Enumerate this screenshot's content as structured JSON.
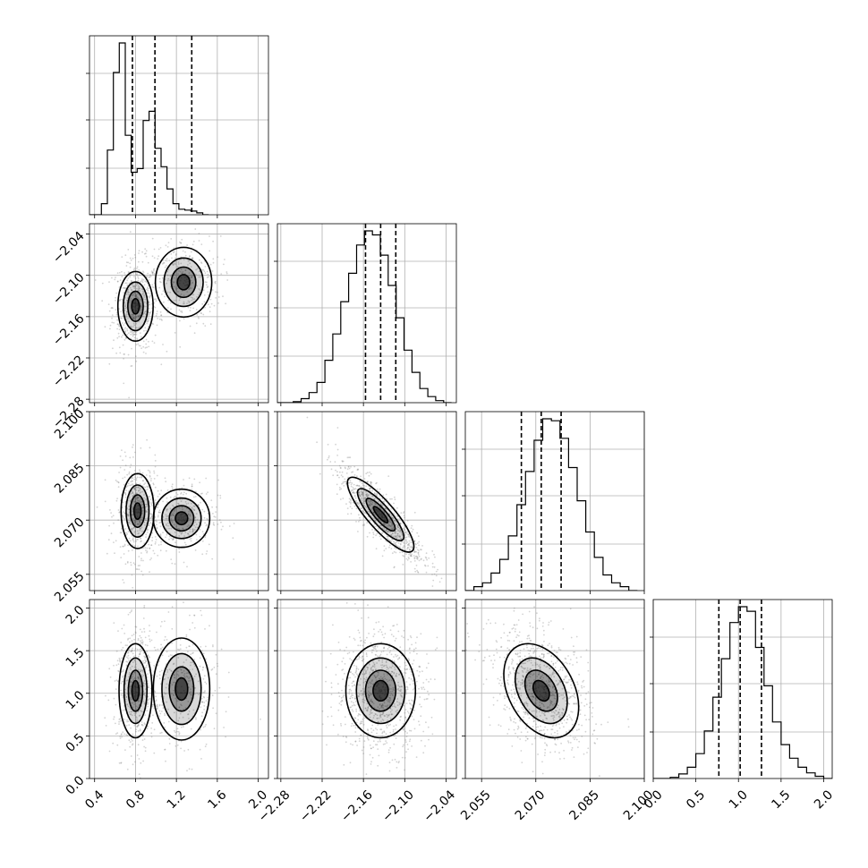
{
  "chart_data": {
    "type": "corner",
    "n_params": 4,
    "grid": true,
    "colors": {
      "line": "#000000",
      "grid": "#b0b0b0",
      "points": "#808080"
    },
    "axes": [
      {
        "range": [
          0.35,
          2.1
        ],
        "ticks": [
          0.4,
          0.8,
          1.2,
          1.6,
          2.0
        ],
        "tick_labels": [
          "0.4",
          "0.8",
          "1.2",
          "1.6",
          "2.0"
        ]
      },
      {
        "range": [
          -2.285,
          -2.025
        ],
        "ticks": [
          -2.28,
          -2.22,
          -2.16,
          -2.1,
          -2.04
        ],
        "tick_labels": [
          "−2.28",
          "−2.22",
          "−2.16",
          "−2.10",
          "−2.04"
        ]
      },
      {
        "range": [
          2.0505,
          2.1
        ],
        "ticks": [
          2.055,
          2.07,
          2.085,
          2.1
        ],
        "tick_labels": [
          "2.055",
          "2.070",
          "2.085",
          "2.100"
        ]
      },
      {
        "range": [
          0.0,
          2.1
        ],
        "ticks": [
          0.0,
          0.5,
          1.0,
          1.5,
          2.0
        ],
        "tick_labels": [
          "0.0",
          "0.5",
          "1.0",
          "1.5",
          "2.0"
        ]
      }
    ],
    "histograms": [
      {
        "bins_start": 0.35,
        "bin_width": 0.0583,
        "counts": [
          0.0,
          0.0,
          0.06,
          0.35,
          0.77,
          0.93,
          0.43,
          0.23,
          0.25,
          0.51,
          0.56,
          0.36,
          0.26,
          0.14,
          0.06,
          0.03,
          0.025,
          0.02,
          0.01,
          0.0
        ],
        "quantiles": [
          0.77,
          0.99,
          1.35
        ]
      },
      {
        "bins_start": -2.285,
        "bin_width": 0.0115,
        "counts": [
          0.0,
          0.0,
          0.005,
          0.02,
          0.05,
          0.1,
          0.21,
          0.34,
          0.5,
          0.64,
          0.78,
          0.85,
          0.83,
          0.73,
          0.58,
          0.42,
          0.26,
          0.15,
          0.07,
          0.03,
          0.01,
          0.0
        ],
        "quantiles": [
          -2.157,
          -2.135,
          -2.113
        ]
      },
      {
        "bins_start": 2.0505,
        "bin_width": 0.00238,
        "counts": [
          0.0,
          0.02,
          0.04,
          0.09,
          0.16,
          0.28,
          0.44,
          0.61,
          0.77,
          0.88,
          0.87,
          0.78,
          0.63,
          0.46,
          0.3,
          0.17,
          0.08,
          0.04,
          0.02,
          0.0
        ],
        "quantiles": [
          2.066,
          2.0715,
          2.077
        ]
      },
      {
        "bins_start": 0.0,
        "bin_width": 0.1,
        "counts": [
          0.0,
          0.0,
          0.005,
          0.02,
          0.05,
          0.11,
          0.21,
          0.36,
          0.53,
          0.69,
          0.76,
          0.74,
          0.58,
          0.41,
          0.25,
          0.15,
          0.09,
          0.05,
          0.025,
          0.01,
          0.0
        ],
        "quantiles": [
          0.77,
          1.02,
          1.27
        ]
      }
    ],
    "pairs": [
      {
        "row": 1,
        "col": 0,
        "modes": [
          {
            "cx": 0.8,
            "cy": -2.145,
            "sx": 0.075,
            "sy": 0.022,
            "rho": 0.0,
            "w": 0.6
          },
          {
            "cx": 1.27,
            "cy": -2.11,
            "sx": 0.12,
            "sy": 0.022,
            "rho": 0.0,
            "w": 0.4
          }
        ]
      },
      {
        "row": 2,
        "col": 0,
        "modes": [
          {
            "cx": 0.82,
            "cy": 2.0725,
            "sx": 0.07,
            "sy": 0.0045,
            "rho": 0.0,
            "w": 0.6
          },
          {
            "cx": 1.25,
            "cy": 2.0705,
            "sx": 0.12,
            "sy": 0.0035,
            "rho": 0.0,
            "w": 0.4
          }
        ]
      },
      {
        "row": 3,
        "col": 0,
        "modes": [
          {
            "cx": 0.8,
            "cy": 1.03,
            "sx": 0.07,
            "sy": 0.24,
            "rho": 0.0,
            "w": 0.6
          },
          {
            "cx": 1.25,
            "cy": 1.05,
            "sx": 0.12,
            "sy": 0.26,
            "rho": 0.0,
            "w": 0.4
          }
        ]
      },
      {
        "row": 2,
        "col": 1,
        "modes": [
          {
            "cx": -2.135,
            "cy": 2.0715,
            "sx": 0.021,
            "sy": 0.0045,
            "rho": -0.85,
            "w": 1.0
          }
        ]
      },
      {
        "row": 3,
        "col": 1,
        "modes": [
          {
            "cx": -2.135,
            "cy": 1.03,
            "sx": 0.022,
            "sy": 0.24,
            "rho": 0.0,
            "w": 1.0
          }
        ]
      },
      {
        "row": 3,
        "col": 2,
        "modes": [
          {
            "cx": 2.0715,
            "cy": 1.03,
            "sx": 0.0045,
            "sy": 0.24,
            "rho": -0.35,
            "w": 1.0
          }
        ]
      }
    ]
  }
}
